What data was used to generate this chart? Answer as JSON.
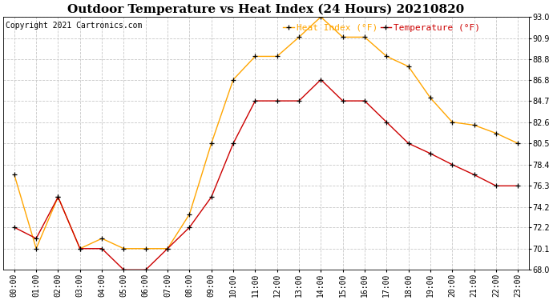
{
  "title": "Outdoor Temperature vs Heat Index (24 Hours) 20210820",
  "copyright": "Copyright 2021 Cartronics.com",
  "legend_heat": "Heat Index (°F)",
  "legend_temp": "Temperature (°F)",
  "hours": [
    "00:00",
    "01:00",
    "02:00",
    "03:00",
    "04:00",
    "05:00",
    "06:00",
    "07:00",
    "08:00",
    "09:00",
    "10:00",
    "11:00",
    "12:00",
    "13:00",
    "14:00",
    "15:00",
    "16:00",
    "17:00",
    "18:00",
    "19:00",
    "20:00",
    "21:00",
    "22:00",
    "23:00"
  ],
  "temperature": [
    72.2,
    71.1,
    75.2,
    70.1,
    70.1,
    68.0,
    68.0,
    70.1,
    72.2,
    75.2,
    80.5,
    84.7,
    84.7,
    84.7,
    86.8,
    84.7,
    84.7,
    82.6,
    80.5,
    79.5,
    78.4,
    77.4,
    76.3,
    76.3
  ],
  "heat_index": [
    77.4,
    70.1,
    75.2,
    70.1,
    71.1,
    70.1,
    70.1,
    70.1,
    73.5,
    80.5,
    86.8,
    89.1,
    89.1,
    91.0,
    93.0,
    91.0,
    91.0,
    89.1,
    88.1,
    85.0,
    82.6,
    82.3,
    81.5,
    80.5
  ],
  "temp_color": "#cc0000",
  "heat_color": "#ffa500",
  "marker_color": "black",
  "ylim": [
    68.0,
    93.0
  ],
  "yticks": [
    68.0,
    70.1,
    72.2,
    74.2,
    76.3,
    78.4,
    80.5,
    82.6,
    84.7,
    86.8,
    88.8,
    90.9,
    93.0
  ],
  "bg_color": "#ffffff",
  "grid_color": "#c8c8c8",
  "title_fontsize": 11,
  "tick_fontsize": 7,
  "copyright_fontsize": 7,
  "legend_fontsize": 8
}
